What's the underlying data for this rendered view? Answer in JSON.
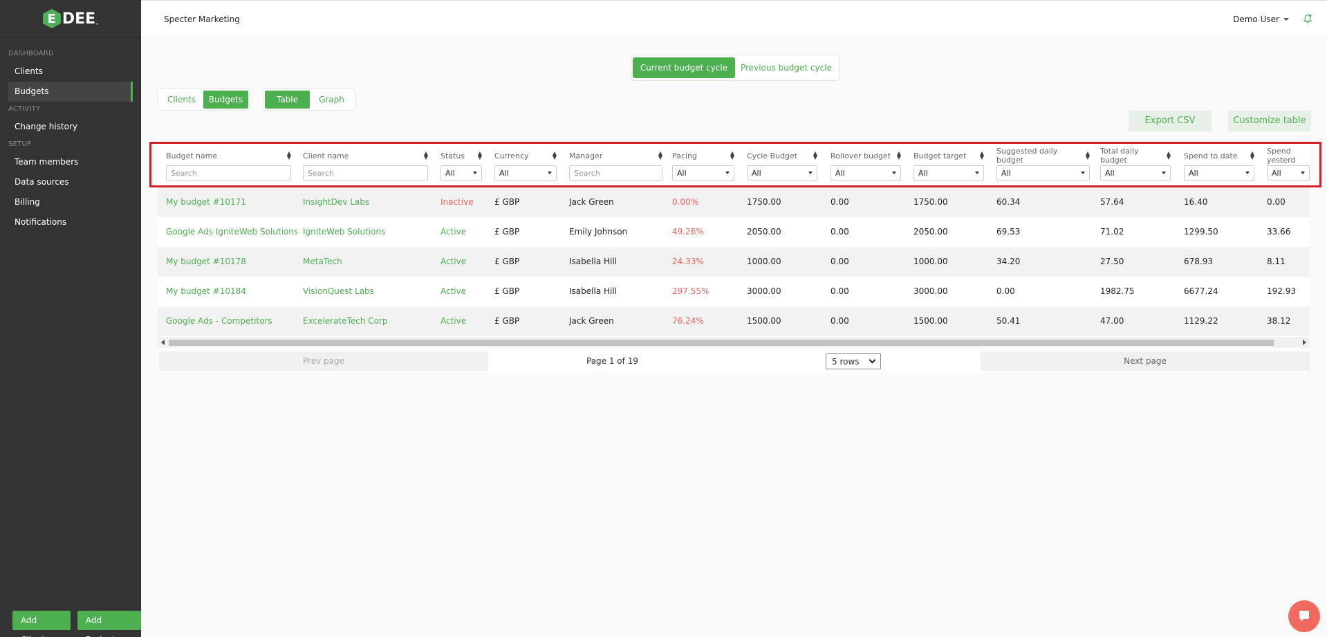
{
  "brand": {
    "logo_letter": "E",
    "logo_text": "DEE"
  },
  "sidebar": {
    "sections": [
      {
        "label": "DASHBOARD",
        "items": [
          {
            "label": "Clients",
            "active": false
          },
          {
            "label": "Budgets",
            "active": true
          }
        ]
      },
      {
        "label": "ACTIVITY",
        "items": [
          {
            "label": "Change history",
            "active": false
          }
        ]
      },
      {
        "label": "SETUP",
        "items": [
          {
            "label": "Team members",
            "active": false
          },
          {
            "label": "Data sources",
            "active": false
          },
          {
            "label": "Billing",
            "active": false
          },
          {
            "label": "Notifications",
            "active": false
          }
        ]
      }
    ],
    "add_client": "Add Client",
    "add_budget": "Add Budget"
  },
  "header": {
    "org": "Specter Marketing",
    "user": "Demo User"
  },
  "cycle": {
    "current": "Current budget cycle",
    "previous": "Previous budget cycle"
  },
  "view_group": {
    "clients": "Clients",
    "budgets": "Budgets"
  },
  "view_mode": {
    "table": "Table",
    "graph": "Graph"
  },
  "actions": {
    "export": "Export CSV",
    "customize": "Customize table"
  },
  "columns": [
    {
      "label": "Budget name",
      "filter": "input",
      "placeholder": "Search"
    },
    {
      "label": "Client name",
      "filter": "input",
      "placeholder": "Search"
    },
    {
      "label": "Status",
      "filter": "select",
      "value": "All"
    },
    {
      "label": "Currency",
      "filter": "select",
      "value": "All"
    },
    {
      "label": "Manager",
      "filter": "input",
      "placeholder": "Search"
    },
    {
      "label": "Pacing",
      "filter": "select",
      "value": "All"
    },
    {
      "label": "Cycle Budget",
      "filter": "select",
      "value": "All"
    },
    {
      "label": "Rollover budget",
      "filter": "select",
      "value": "All"
    },
    {
      "label": "Budget target",
      "filter": "select",
      "value": "All"
    },
    {
      "label": "Suggested daily budget",
      "filter": "select",
      "value": "All"
    },
    {
      "label": "Total daily budget",
      "filter": "select",
      "value": "All"
    },
    {
      "label": "Spend to date",
      "filter": "select",
      "value": "All"
    },
    {
      "label": "Spend yesterd",
      "filter": "select",
      "value": "All"
    }
  ],
  "rows": [
    [
      "My budget #10171",
      "InsightDev Labs",
      "Inactive",
      "£ GBP",
      "Jack Green",
      "0.00%",
      "1750.00",
      "0.00",
      "1750.00",
      "60.34",
      "57.64",
      "16.40",
      "0.00"
    ],
    [
      "Google Ads IgniteWeb Solutions",
      "IgniteWeb Solutions",
      "Active",
      "£ GBP",
      "Emily Johnson",
      "49.26%",
      "2050.00",
      "0.00",
      "2050.00",
      "69.53",
      "71.02",
      "1299.50",
      "33.66"
    ],
    [
      "My budget #10178",
      "MetaTech",
      "Active",
      "£ GBP",
      "Isabella Hill",
      "24.33%",
      "1000.00",
      "0.00",
      "1000.00",
      "34.20",
      "27.50",
      "678.93",
      "8.11"
    ],
    [
      "My budget #10184",
      "VisionQuest Labs",
      "Active",
      "£ GBP",
      "Isabella Hill",
      "297.55%",
      "3000.00",
      "0.00",
      "3000.00",
      "0.00",
      "1982.75",
      "6677.24",
      "192.93"
    ],
    [
      "Google Ads - Competitors",
      "ExcelerateTech Corp",
      "Active",
      "£ GBP",
      "Jack Green",
      "76.24%",
      "1500.00",
      "0.00",
      "1500.00",
      "50.41",
      "47.00",
      "1129.22",
      "38.12"
    ]
  ],
  "pager": {
    "prev": "Prev page",
    "info": "Page 1 of 19",
    "rows": "5 rows",
    "next": "Next page"
  },
  "colors": {
    "accent": "#4caf50",
    "negative": "#f0625d",
    "sidebar": "#333333"
  }
}
